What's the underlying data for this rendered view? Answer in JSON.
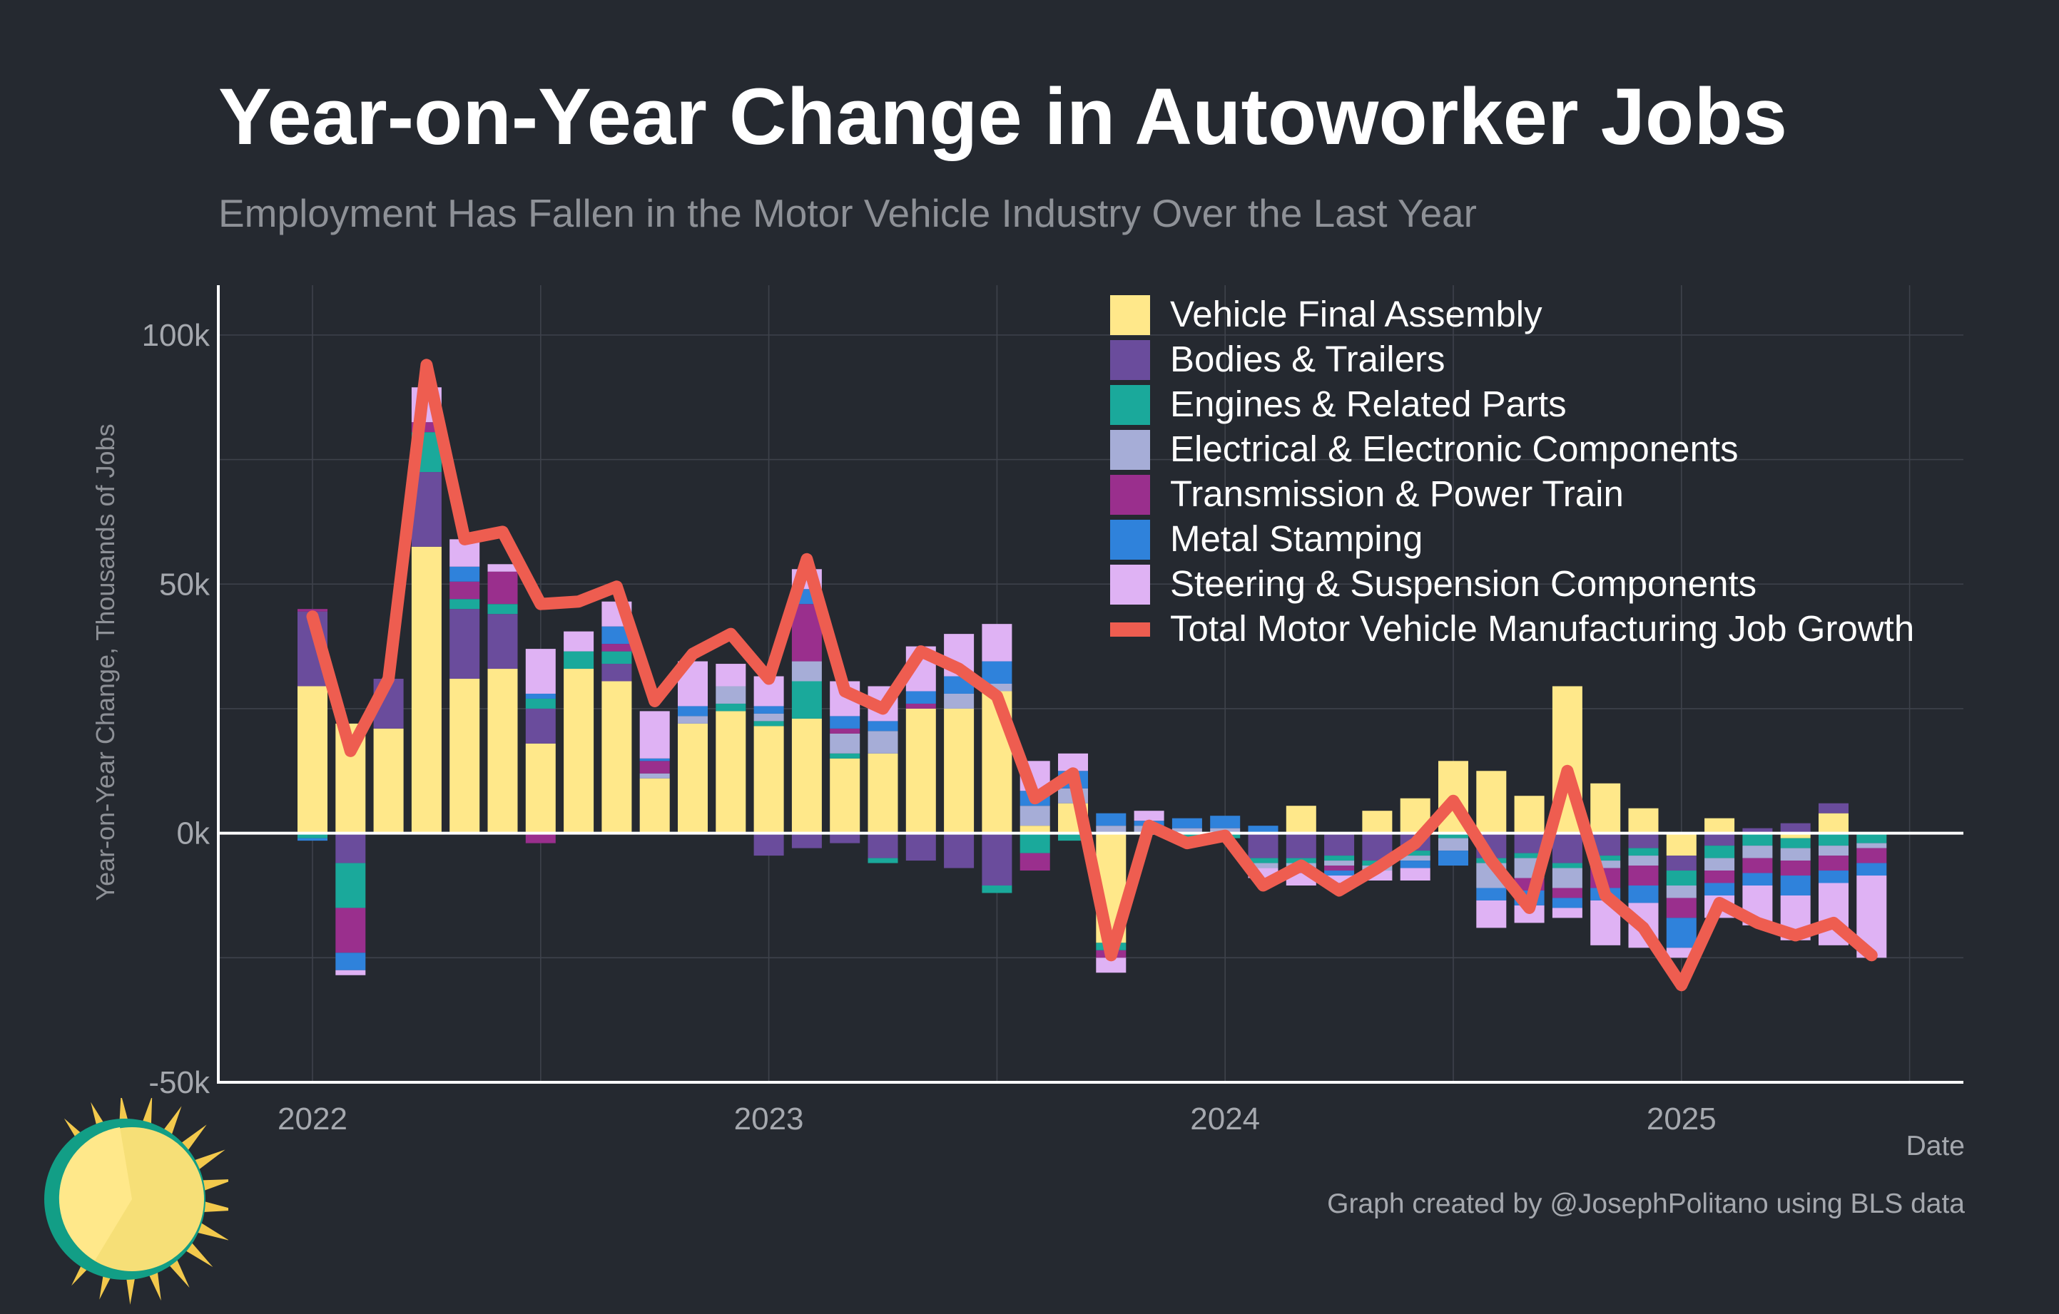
{
  "chart_data": {
    "type": "bar",
    "stacked": true,
    "title": "Year-on-Year Change in Autoworker Jobs",
    "subtitle": "Employment Has Fallen in the Motor Vehicle Industry Over the Last Year",
    "xlabel": "Date",
    "ylabel": "Year-on-Year Change, Thousands of Jobs",
    "ylim": [
      -50000,
      110000
    ],
    "yticks": [
      -50000,
      0,
      50000,
      100000
    ],
    "ytick_labels": [
      "-50k",
      "0k",
      "50k",
      "100k"
    ],
    "xticks": [
      "2022",
      "2023",
      "2024",
      "2025"
    ],
    "grid": true,
    "legend_position": "top-right",
    "dates": [
      "2022-01",
      "2022-02",
      "2022-03",
      "2022-04",
      "2022-05",
      "2022-06",
      "2022-07",
      "2022-08",
      "2022-09",
      "2022-10",
      "2022-11",
      "2022-12",
      "2023-01",
      "2023-02",
      "2023-03",
      "2023-04",
      "2023-05",
      "2023-06",
      "2023-07",
      "2023-08",
      "2023-09",
      "2023-10",
      "2023-11",
      "2023-12",
      "2024-01",
      "2024-02",
      "2024-03",
      "2024-04",
      "2024-05",
      "2024-06",
      "2024-07",
      "2024-08",
      "2024-09",
      "2024-10",
      "2024-11",
      "2024-12",
      "2025-01",
      "2025-02",
      "2025-03",
      "2025-04",
      "2025-05",
      "2025-06"
    ],
    "series": [
      {
        "name": "Vehicle Final Assembly",
        "color": "#ffe88a",
        "values": [
          29500,
          22000,
          21000,
          57500,
          31000,
          33000,
          18000,
          33000,
          30500,
          11000,
          22000,
          24500,
          21500,
          23000,
          15000,
          16000,
          25000,
          25000,
          28500,
          1500,
          6000,
          -22000,
          0,
          0,
          0,
          0,
          5500,
          0,
          4500,
          7000,
          14500,
          12500,
          7500,
          29500,
          10000,
          5000,
          -4500,
          3000,
          0,
          -1000,
          4000,
          0
        ]
      },
      {
        "name": "Bodies & Trailers",
        "color": "#6a4c9c",
        "values": [
          15000,
          -6000,
          10000,
          15000,
          14000,
          11000,
          7000,
          0,
          3500,
          0,
          0,
          0,
          -4500,
          -3000,
          -2000,
          -5000,
          -5500,
          -7000,
          -10500,
          0,
          0,
          0,
          0,
          0,
          0,
          -5000,
          -5000,
          -4500,
          -5500,
          -3500,
          0,
          -5000,
          -4000,
          -6000,
          -4500,
          -3000,
          -3000,
          -2500,
          1000,
          2000,
          2000,
          0
        ]
      },
      {
        "name": "Engines & Related Parts",
        "color": "#1aa99b",
        "values": [
          -1000,
          -9000,
          0,
          8000,
          2000,
          2000,
          2000,
          3500,
          2500,
          0,
          0,
          1500,
          1000,
          7500,
          1000,
          -1000,
          0,
          0,
          -1500,
          -4000,
          -1500,
          -1500,
          0,
          -1500,
          -1000,
          -1000,
          -1000,
          -1000,
          -1000,
          -1000,
          -1000,
          -1000,
          -1000,
          -1000,
          -1000,
          -1500,
          -3000,
          -2500,
          -2500,
          -2000,
          -2500,
          -2000
        ]
      },
      {
        "name": "Electrical & Electronic Components",
        "color": "#a6add7",
        "values": [
          0,
          0,
          0,
          0,
          0,
          0,
          0,
          0,
          0,
          1000,
          1500,
          3500,
          1500,
          4000,
          4000,
          4500,
          0,
          3000,
          1500,
          4000,
          3000,
          1500,
          1500,
          1000,
          1000,
          -1000,
          -1000,
          -1000,
          -1000,
          -1000,
          -2500,
          -5000,
          -4000,
          -4000,
          -1500,
          -2000,
          -2500,
          -2500,
          -2500,
          -2500,
          -2000,
          -1000
        ]
      },
      {
        "name": "Transmission & Power Train",
        "color": "#9a2f8d",
        "values": [
          500,
          -9000,
          0,
          2000,
          3500,
          6500,
          -2000,
          0,
          1500,
          2500,
          0,
          0,
          0,
          11500,
          1000,
          0,
          1000,
          0,
          0,
          -3500,
          0,
          -1500,
          0,
          0,
          0,
          0,
          -1000,
          -1000,
          0,
          0,
          0,
          0,
          -2500,
          -2000,
          -4000,
          -4000,
          -4000,
          -2500,
          -3000,
          -3000,
          -3000,
          -3000
        ]
      },
      {
        "name": "Metal Stamping",
        "color": "#2f82db",
        "values": [
          -500,
          -3500,
          0,
          0,
          3000,
          0,
          1000,
          0,
          3500,
          500,
          2000,
          0,
          1500,
          3000,
          2500,
          2000,
          2500,
          3500,
          4500,
          3000,
          3500,
          2500,
          1000,
          2000,
          2500,
          1500,
          0,
          -1000,
          0,
          -1500,
          -3000,
          -2500,
          -3000,
          -2000,
          -2500,
          -3500,
          -6000,
          -2500,
          -2500,
          -4000,
          -2500,
          -2500
        ]
      },
      {
        "name": "Steering & Suspension Components",
        "color": "#dfb2f4",
        "values": [
          0,
          -1000,
          0,
          7000,
          5500,
          1500,
          9000,
          4000,
          5000,
          9500,
          9000,
          4500,
          6000,
          4000,
          7000,
          7000,
          9000,
          8500,
          7500,
          6000,
          3500,
          -3000,
          2000,
          0,
          0,
          -2000,
          -2500,
          -1500,
          -2000,
          -2500,
          0,
          -5500,
          -3500,
          -2000,
          -9000,
          -9000,
          -2000,
          -4500,
          -8000,
          -9000,
          -12500,
          -16500
        ]
      }
    ],
    "total": {
      "name": "Total Motor Vehicle Manufacturing Job Growth",
      "color": "#ee5d50",
      "values": [
        43500,
        16500,
        31000,
        94000,
        59000,
        60500,
        46000,
        46500,
        49500,
        26500,
        36000,
        40000,
        31000,
        55000,
        28500,
        25000,
        36500,
        33000,
        27500,
        7000,
        12000,
        -24500,
        1500,
        -2000,
        -500,
        -10500,
        -6500,
        -11500,
        -7000,
        -2000,
        6500,
        -5500,
        -15000,
        12500,
        -12500,
        -19000,
        -30500,
        -14000,
        -18000,
        -20500,
        -18000,
        -24500
      ]
    }
  },
  "credit": "Graph created by @JosephPolitano using BLS data"
}
